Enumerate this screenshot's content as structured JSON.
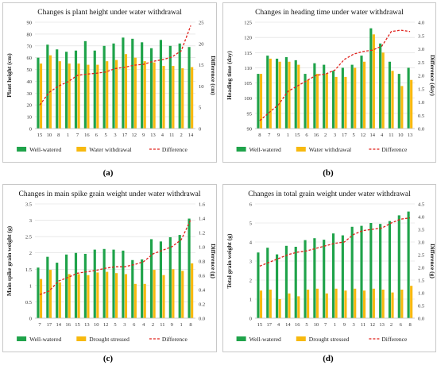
{
  "panel_labels": [
    "(a)",
    "(b)",
    "(c)",
    "(d)"
  ],
  "chart_data": [
    {
      "type": "bar",
      "title": "Changes is plant height under water withdrawal",
      "ylabel": "Plant height (cm)",
      "y2label": "Difference (cm)",
      "categories": [
        "15",
        "10",
        "8",
        "1",
        "7",
        "16",
        "6",
        "5",
        "3",
        "17",
        "12",
        "9",
        "13",
        "4",
        "11",
        "2",
        "14"
      ],
      "ylim": [
        0,
        90
      ],
      "yticks": [
        0,
        10,
        20,
        30,
        40,
        50,
        60,
        70,
        80,
        90
      ],
      "y2lim": [
        0,
        25
      ],
      "y2ticks": [
        0,
        5,
        10,
        15,
        20,
        25
      ],
      "series": [
        {
          "name": "Well-watered",
          "axis": "left",
          "kind": "bar",
          "color": "#1fa34a",
          "values": [
            60,
            71,
            67,
            65,
            66,
            74,
            66,
            70,
            72,
            77,
            76,
            73,
            68,
            75,
            70,
            72,
            69
          ]
        },
        {
          "name": "Water withdrawal",
          "axis": "left",
          "kind": "bar",
          "color": "#f7b90f",
          "values": [
            55,
            62,
            57,
            55,
            55,
            54,
            54,
            57,
            58,
            63,
            60,
            57,
            56,
            53,
            53,
            51,
            52
          ]
        },
        {
          "name": "Difference",
          "axis": "right",
          "kind": "line",
          "color": "#e0201b",
          "values": [
            5.5,
            8.5,
            10,
            11,
            12.5,
            12.8,
            13,
            13.3,
            14.1,
            14.4,
            14.9,
            15.1,
            15.8,
            16.2,
            16.8,
            18.3,
            24.2
          ]
        }
      ],
      "legend_position": "bottom"
    },
    {
      "type": "bar",
      "title": "Changes in heading time under water withdrawal",
      "ylabel": "Heading time (day)",
      "y2label": "Difference (day)",
      "categories": [
        "8",
        "7",
        "9",
        "1",
        "15",
        "6",
        "16",
        "2",
        "3",
        "17",
        "5",
        "12",
        "14",
        "4",
        "11",
        "10",
        "13"
      ],
      "ylim": [
        90,
        125
      ],
      "yticks": [
        90,
        95,
        100,
        105,
        110,
        115,
        120,
        125
      ],
      "y2lim": [
        0,
        4.0
      ],
      "y2ticks": [
        0.0,
        0.5,
        1.0,
        1.5,
        2.0,
        2.5,
        3.0,
        3.5,
        4.0
      ],
      "series": [
        {
          "name": "Well-watered",
          "axis": "left",
          "kind": "bar",
          "color": "#1fa34a",
          "values": [
            108,
            114,
            113,
            113.5,
            112.5,
            108,
            111.5,
            111,
            109,
            110,
            111,
            114,
            123,
            118,
            112,
            108,
            110
          ]
        },
        {
          "name": "Water withdrawal",
          "axis": "left",
          "kind": "bar",
          "color": "#f7b90f",
          "values": [
            108,
            113,
            112,
            112,
            111,
            106,
            108,
            108,
            107,
            107,
            110,
            112,
            121,
            115,
            109,
            104,
            106
          ]
        },
        {
          "name": "Difference",
          "axis": "right",
          "kind": "line",
          "color": "#e0201b",
          "values": [
            0.3,
            0.6,
            0.9,
            1.4,
            1.6,
            1.8,
            2.0,
            2.05,
            2.2,
            2.6,
            2.8,
            2.9,
            2.95,
            3.1,
            3.65,
            3.7,
            3.65
          ]
        }
      ],
      "legend_position": "bottom"
    },
    {
      "type": "bar",
      "title": "Changes in main spike grain weight under water withdrawal",
      "ylabel": "Main spike grain weight (g)",
      "y2label": "Difference (g)",
      "categories": [
        "7",
        "17",
        "14",
        "16",
        "15",
        "13",
        "10",
        "12",
        "5",
        "3",
        "6",
        "4",
        "2",
        "11",
        "9",
        "1",
        "8"
      ],
      "ylim": [
        0,
        3.5
      ],
      "yticks": [
        0,
        0.5,
        1,
        1.5,
        2,
        2.5,
        3,
        3.5
      ],
      "y2lim": [
        0,
        1.6
      ],
      "y2ticks": [
        0,
        0.2,
        0.4,
        0.6,
        0.8,
        1.0,
        1.2,
        1.4,
        1.6
      ],
      "series": [
        {
          "name": "Well-watered",
          "axis": "left",
          "kind": "bar",
          "color": "#1fa34a",
          "values": [
            1.55,
            1.88,
            1.7,
            1.95,
            2.0,
            1.97,
            2.1,
            2.12,
            2.1,
            2.07,
            1.78,
            1.8,
            2.42,
            2.35,
            2.48,
            2.55,
            3.05
          ]
        },
        {
          "name": "Drought stressed",
          "axis": "left",
          "kind": "bar",
          "color": "#f7b90f",
          "values": [
            1.2,
            1.48,
            1.1,
            1.35,
            1.35,
            1.32,
            1.4,
            1.42,
            1.38,
            1.35,
            1.05,
            1.05,
            1.48,
            1.32,
            1.5,
            1.45,
            1.68
          ]
        },
        {
          "name": "Difference",
          "axis": "right",
          "kind": "line",
          "color": "#e0201b",
          "values": [
            0.33,
            0.38,
            0.52,
            0.57,
            0.63,
            0.65,
            0.67,
            0.7,
            0.72,
            0.72,
            0.75,
            0.79,
            0.9,
            0.95,
            1.0,
            1.1,
            1.38
          ]
        }
      ],
      "legend_position": "bottom"
    },
    {
      "type": "bar",
      "title": "Changes in total grain weight under water withdrawal",
      "ylabel": "Total grain weight (g)",
      "y2label": "Difference (g)",
      "categories": [
        "15",
        "17",
        "4",
        "14",
        "16",
        "5",
        "10",
        "7",
        "1",
        "9",
        "3",
        "11",
        "12",
        "13",
        "2",
        "6",
        "8"
      ],
      "ylim": [
        0,
        6
      ],
      "yticks": [
        0,
        1,
        2,
        3,
        4,
        5,
        6
      ],
      "y2lim": [
        0,
        4.5
      ],
      "y2ticks": [
        0.0,
        0.5,
        1.0,
        1.5,
        2.0,
        2.5,
        3.0,
        3.5,
        4.0,
        4.5
      ],
      "series": [
        {
          "name": "Well-watered",
          "axis": "left",
          "kind": "bar",
          "color": "#1fa34a",
          "values": [
            3.45,
            3.7,
            3.35,
            3.8,
            3.75,
            4.1,
            4.2,
            4.12,
            4.45,
            4.35,
            4.8,
            4.85,
            5.0,
            4.95,
            5.1,
            5.4,
            5.6
          ]
        },
        {
          "name": "Drought stressed",
          "axis": "left",
          "kind": "bar",
          "color": "#f7b90f",
          "values": [
            1.45,
            1.5,
            1.0,
            1.3,
            1.15,
            1.5,
            1.55,
            1.3,
            1.55,
            1.45,
            1.55,
            1.45,
            1.55,
            1.5,
            1.35,
            1.5,
            1.7
          ]
        },
        {
          "name": "Difference",
          "axis": "right",
          "kind": "line",
          "color": "#e0201b",
          "values": [
            2.05,
            2.2,
            2.35,
            2.5,
            2.6,
            2.65,
            2.75,
            2.85,
            2.95,
            3.0,
            3.3,
            3.45,
            3.5,
            3.55,
            3.75,
            3.9,
            3.95
          ]
        }
      ],
      "legend_position": "bottom"
    }
  ]
}
